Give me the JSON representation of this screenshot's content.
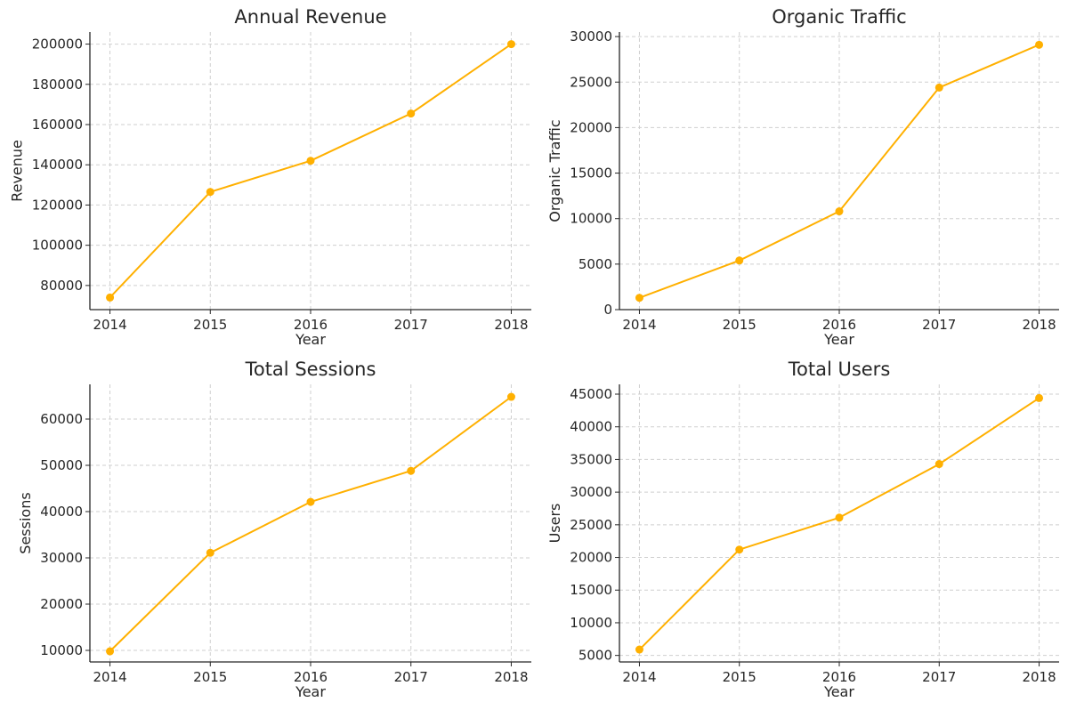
{
  "colors": {
    "series": "#FFB000"
  },
  "chart_data": [
    {
      "type": "line",
      "title": "Annual Revenue",
      "xlabel": "Year",
      "ylabel": "Revenue",
      "x": [
        2014,
        2015,
        2016,
        2017,
        2018
      ],
      "values": [
        74000,
        126500,
        142000,
        165500,
        200000
      ],
      "xlim": [
        2013.8,
        2018.2
      ],
      "ylim": [
        68000,
        206000
      ],
      "yticks": [
        80000,
        100000,
        120000,
        140000,
        160000,
        180000,
        200000
      ],
      "grid": true,
      "legend": "none"
    },
    {
      "type": "line",
      "title": "Organic Traffic",
      "xlabel": "Year",
      "ylabel": "Organic Traffic",
      "x": [
        2014,
        2015,
        2016,
        2017,
        2018
      ],
      "values": [
        1300,
        5400,
        10800,
        24400,
        29100
      ],
      "xlim": [
        2013.8,
        2018.2
      ],
      "ylim": [
        0,
        30500
      ],
      "yticks": [
        0,
        5000,
        10000,
        15000,
        20000,
        25000,
        30000
      ],
      "grid": true,
      "legend": "none"
    },
    {
      "type": "line",
      "title": "Total Sessions",
      "xlabel": "Year",
      "ylabel": "Sessions",
      "x": [
        2014,
        2015,
        2016,
        2017,
        2018
      ],
      "values": [
        9800,
        31100,
        42100,
        48800,
        64800
      ],
      "xlim": [
        2013.8,
        2018.2
      ],
      "ylim": [
        7500,
        67500
      ],
      "yticks": [
        10000,
        20000,
        30000,
        40000,
        50000,
        60000
      ],
      "grid": true,
      "legend": "none"
    },
    {
      "type": "line",
      "title": "Total Users",
      "xlabel": "Year",
      "ylabel": "Users",
      "x": [
        2014,
        2015,
        2016,
        2017,
        2018
      ],
      "values": [
        5900,
        21200,
        26100,
        34300,
        44400
      ],
      "xlim": [
        2013.8,
        2018.2
      ],
      "ylim": [
        4000,
        46500
      ],
      "yticks": [
        5000,
        10000,
        15000,
        20000,
        25000,
        30000,
        35000,
        40000,
        45000
      ],
      "grid": true,
      "legend": "none"
    }
  ]
}
